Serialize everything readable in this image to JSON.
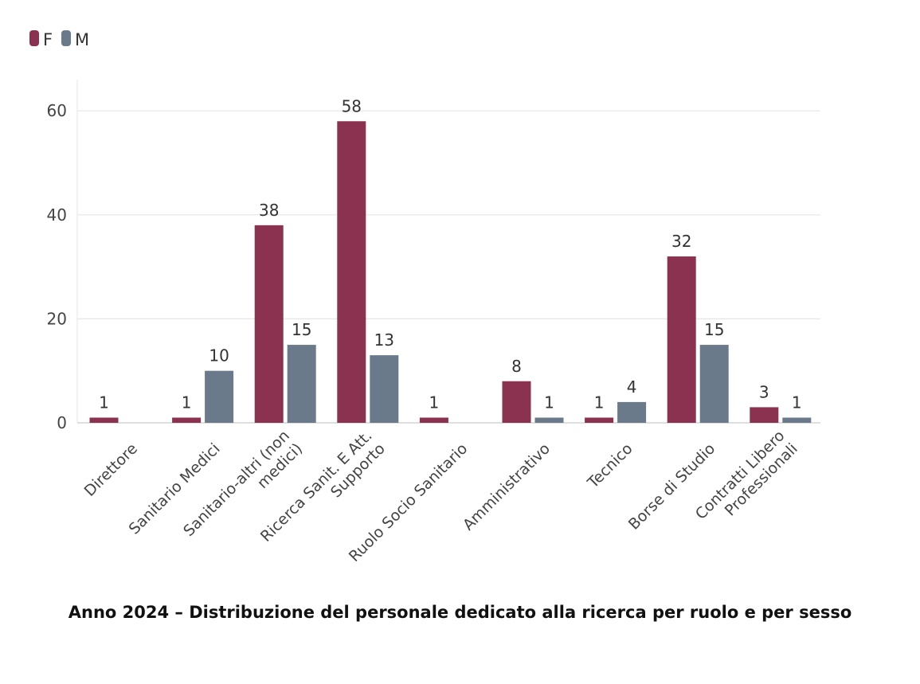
{
  "chart_data": {
    "type": "bar",
    "title": "Anno 2024 – Distribuzione del personale dedicato alla ricerca per ruolo e per sesso",
    "xlabel": "",
    "ylabel": "",
    "ylim": [
      0,
      66
    ],
    "yticks": [
      0,
      20,
      40,
      60
    ],
    "grid": true,
    "legend_position": "top-left",
    "categories": [
      "Direttore",
      "Sanitario Medici",
      "Sanitario-altri (non medici)",
      "Ricerca Sanit. E Att. Supporto",
      "Ruolo Socio Sanitario",
      "Amministrativo",
      "Tecnico",
      "Borse di Studio",
      "Contratti Libero Professionali"
    ],
    "category_lines": [
      [
        "Direttore"
      ],
      [
        "Sanitario Medici"
      ],
      [
        "Sanitario-altri (non",
        "medici)"
      ],
      [
        "Ricerca Sanit. E Att.",
        "Supporto"
      ],
      [
        "Ruolo Socio Sanitario"
      ],
      [
        "Amministrativo"
      ],
      [
        "Tecnico"
      ],
      [
        "Borse di Studio"
      ],
      [
        "Contratti Libero",
        "Professionali"
      ]
    ],
    "series": [
      {
        "name": "F",
        "color": "#8b3250",
        "values": [
          1,
          1,
          38,
          58,
          1,
          8,
          1,
          32,
          3
        ]
      },
      {
        "name": "M",
        "color": "#6b7a8b",
        "values": [
          null,
          10,
          15,
          13,
          null,
          1,
          4,
          15,
          1
        ]
      }
    ]
  }
}
